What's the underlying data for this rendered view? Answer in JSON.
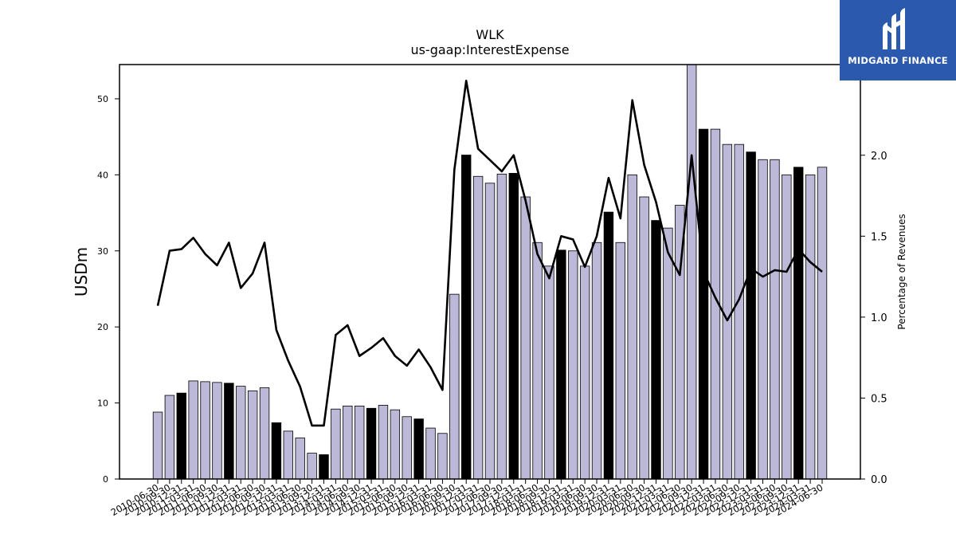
{
  "brand": {
    "name": "MIDGARD FINANCE",
    "logo_icon": "midgard-m-icon",
    "background": "#2b59ad"
  },
  "chart_data": {
    "type": "bar+line",
    "title": "WLK",
    "subtitle": "us-gaap:InterestExpense",
    "ylabel": "USDm",
    "y2label": "Percentage of Revenues",
    "ylim": [
      0,
      54.5
    ],
    "y2lim": [
      0,
      2.56
    ],
    "yticks": [
      0,
      10,
      20,
      30,
      40,
      50
    ],
    "y2ticks": [
      0.0,
      0.5,
      1.0,
      1.5,
      2.0
    ],
    "y2tick_labels": [
      "0.0",
      "0.5",
      "1.0",
      "1.5",
      "2.0"
    ],
    "grid": false,
    "colors": {
      "bar": "#bcb8d8",
      "bar_highlight": "#000000",
      "line": "#000000"
    },
    "categories": [
      "2010-06-30",
      "2010-09-30",
      "2010-12-31",
      "2011-03-31",
      "2011-06-30",
      "2011-09-30",
      "2011-12-31",
      "2012-03-31",
      "2012-06-30",
      "2012-09-30",
      "2012-12-31",
      "2013-03-31",
      "2013-06-30",
      "2013-09-30",
      "2013-12-31",
      "2014-03-31",
      "2014-06-30",
      "2014-09-30",
      "2014-12-31",
      "2015-03-31",
      "2015-06-30",
      "2015-09-30",
      "2015-12-31",
      "2016-03-31",
      "2016-06-30",
      "2016-09-30",
      "2016-12-31",
      "2017-03-31",
      "2017-06-30",
      "2017-09-30",
      "2017-12-31",
      "2018-03-31",
      "2018-06-30",
      "2018-09-30",
      "2018-12-31",
      "2019-03-31",
      "2019-06-30",
      "2019-09-30",
      "2019-12-31",
      "2020-03-31",
      "2020-06-30",
      "2020-09-30",
      "2020-12-31",
      "2021-03-31",
      "2021-06-30",
      "2021-09-30",
      "2021-12-31",
      "2022-03-31",
      "2022-06-30",
      "2022-09-30",
      "2022-12-31",
      "2023-03-31",
      "2023-06-30",
      "2023-09-30",
      "2023-12-31",
      "2024-03-31",
      "2024-06-30"
    ],
    "series": [
      {
        "kind": "bar",
        "values": [
          8.8,
          11.0,
          11.3,
          12.9,
          12.8,
          12.7,
          12.6,
          12.2,
          11.6,
          12.0,
          7.4,
          6.3,
          5.4,
          3.4,
          3.2,
          9.2,
          9.6,
          9.6,
          9.3,
          9.7,
          9.1,
          8.2,
          7.9,
          6.7,
          6.0,
          24.3,
          42.6,
          39.8,
          38.9,
          40.1,
          40.2,
          37.1,
          31.1,
          28.0,
          30.1,
          30.0,
          28.0,
          31.1,
          35.1,
          31.1,
          40.0,
          37.1,
          34.0,
          33.0,
          36.0,
          54.6,
          46.0,
          46.0,
          44.0,
          44.0,
          43.0,
          42.0,
          42.0,
          40.0,
          41.0,
          40.0,
          41.0
        ],
        "highlight": [
          false,
          false,
          true,
          false,
          false,
          false,
          true,
          false,
          false,
          false,
          true,
          false,
          false,
          false,
          true,
          false,
          false,
          false,
          true,
          false,
          false,
          false,
          true,
          false,
          false,
          false,
          true,
          false,
          false,
          false,
          true,
          false,
          false,
          false,
          true,
          false,
          false,
          false,
          true,
          false,
          false,
          false,
          true,
          false,
          false,
          false,
          true,
          false,
          false,
          false,
          true,
          false,
          false,
          false,
          true,
          false,
          false
        ]
      },
      {
        "kind": "line",
        "axis": "right",
        "values": [
          1.07,
          1.41,
          1.42,
          1.49,
          1.39,
          1.32,
          1.46,
          1.18,
          1.27,
          1.46,
          0.92,
          0.73,
          0.57,
          0.33,
          0.33,
          0.89,
          0.95,
          0.76,
          0.81,
          0.87,
          0.76,
          0.7,
          0.8,
          0.69,
          0.55,
          1.91,
          2.46,
          2.04,
          1.97,
          1.9,
          2.0,
          1.72,
          1.39,
          1.24,
          1.5,
          1.48,
          1.31,
          1.5,
          1.86,
          1.61,
          2.34,
          1.94,
          1.71,
          1.4,
          1.26,
          2.0,
          1.28,
          1.12,
          0.98,
          1.11,
          1.3,
          1.25,
          1.29,
          1.28,
          1.42,
          1.34,
          1.28
        ]
      }
    ]
  }
}
